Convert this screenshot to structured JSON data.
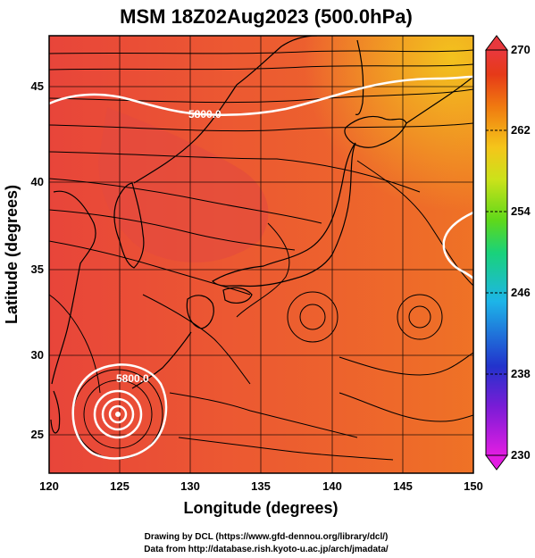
{
  "title": "MSM 18Z02Aug2023 (500.0hPa)",
  "x_axis": {
    "label": "Longitude (degrees)",
    "ticks": [
      "120",
      "125",
      "130",
      "135",
      "140",
      "145",
      "150"
    ],
    "range": [
      120,
      150
    ]
  },
  "y_axis": {
    "label": "Latitude  (degrees)",
    "ticks": [
      "25",
      "30",
      "35",
      "40",
      "45"
    ],
    "range": [
      22.4,
      47.6
    ]
  },
  "colorbar": {
    "ticks": [
      "230",
      "238",
      "246",
      "254",
      "262",
      "270"
    ],
    "range": [
      230,
      270
    ],
    "colors": [
      "#e21de2",
      "#7a1cd6",
      "#2233cc",
      "#1db5e8",
      "#19d27a",
      "#5fd81a",
      "#cbe21a",
      "#f5c51a",
      "#f07a10",
      "#e63a18",
      "#e8383d"
    ]
  },
  "contours": [
    {
      "label": "5800.0",
      "color": "#ffffff"
    },
    {
      "label": "5800.0",
      "color": "#ffffff"
    }
  ],
  "credits": {
    "line1": "Drawing by DCL (https://www.gfd-dennou.org/library/dcl/)",
    "line2": "Data from http://database.rish.kyoto-u.ac.jp/arch/jmadata/"
  },
  "colors": {
    "field_warm": "#e8453a",
    "field_mid": "#ef6a2a",
    "field_orange": "#f28a22",
    "field_yellow": "#f3c21e",
    "grid": "#000000"
  }
}
